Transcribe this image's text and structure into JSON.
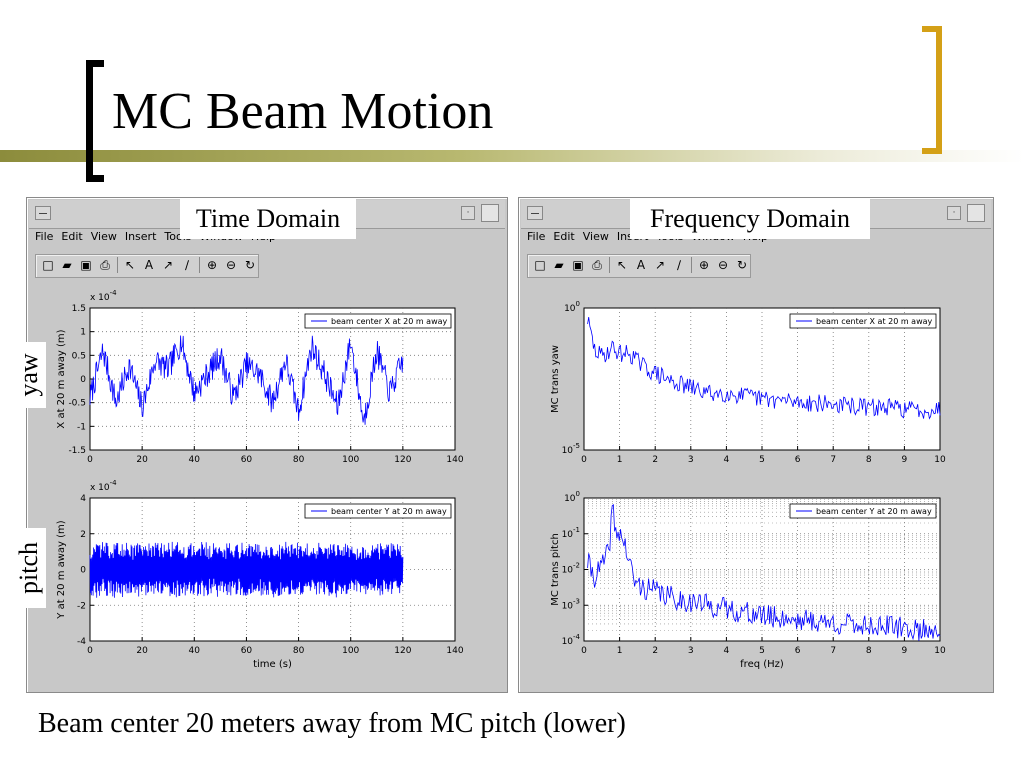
{
  "slide": {
    "title": "MC Beam Motion",
    "caption": "Beam center 20 meters away from MC  pitch (lower)",
    "side_labels": {
      "yaw": "yaw",
      "pitch": "pitch"
    },
    "accent_color": "#d4a017",
    "line_color": "#9b9b57"
  },
  "windows": [
    {
      "header": "Time Domain",
      "menu": [
        "File",
        "Edit",
        "View",
        "Insert",
        "Tools",
        "Window",
        "Help"
      ],
      "toolbar_icons": [
        "new-file-icon",
        "open-folder-icon",
        "save-icon",
        "print-icon",
        "select-arrow-icon",
        "text-icon",
        "arrow-icon",
        "line-icon",
        "zoom-in-icon",
        "zoom-out-icon",
        "rotate-icon"
      ]
    },
    {
      "header": "Frequency Domain",
      "menu": [
        "File",
        "Edit",
        "View",
        "Insert",
        "Tools",
        "Window",
        "Help"
      ],
      "toolbar_icons": [
        "new-file-icon",
        "open-folder-icon",
        "save-icon",
        "print-icon",
        "select-arrow-icon",
        "text-icon",
        "arrow-icon",
        "line-icon",
        "zoom-in-icon",
        "zoom-out-icon",
        "rotate-icon"
      ]
    }
  ],
  "chart_data": [
    {
      "type": "line",
      "ylabel": "X at 20 m away (m)",
      "xlabel": "",
      "exponent": "x 10^-4",
      "xlim": [
        0,
        140
      ],
      "ylim": [
        -1.5,
        1.5
      ],
      "xticks": [
        "0",
        "20",
        "40",
        "60",
        "80",
        "100",
        "120",
        "140"
      ],
      "yticks": [
        "1.5",
        "1",
        "0.5",
        "0",
        "-0.5",
        "-1",
        "-1.5"
      ],
      "legend": "beam center X at 20 m away",
      "line_color": "#0000ff",
      "grid": true,
      "series": [
        {
          "x": [
            0,
            5,
            10,
            15,
            20,
            25,
            30,
            35,
            40,
            45,
            50,
            55,
            60,
            65,
            70,
            75,
            80,
            85,
            90,
            95,
            100,
            105,
            110,
            115,
            120
          ],
          "y": [
            -0.4,
            0.6,
            -0.5,
            0.3,
            -0.6,
            0.4,
            0.2,
            0.8,
            -0.3,
            0.1,
            0.5,
            -0.4,
            0.3,
            0.1,
            -0.5,
            0.4,
            -0.7,
            0.7,
            0.1,
            -0.6,
            0.8,
            -0.9,
            0.6,
            -0.3,
            0.4
          ]
        }
      ]
    },
    {
      "type": "line",
      "ylabel": "Y at 20 m away (m)",
      "xlabel": "time (s)",
      "exponent": "x 10^-4",
      "xlim": [
        0,
        140
      ],
      "ylim": [
        -4,
        4
      ],
      "xticks": [
        "0",
        "20",
        "40",
        "60",
        "80",
        "100",
        "120",
        "140"
      ],
      "yticks": [
        "4",
        "2",
        "0",
        "-2",
        "-4"
      ],
      "legend": "beam center Y at 20 m away",
      "line_color": "#0000ff",
      "grid": true,
      "series": [
        {
          "x": [
            0,
            5,
            10,
            15,
            20,
            25,
            30,
            35,
            40,
            45,
            50,
            55,
            60,
            65,
            70,
            75,
            80,
            85,
            90,
            95,
            100,
            105,
            110,
            115,
            120
          ],
          "y": [
            1.5,
            -1.2,
            1,
            -1.3,
            1.2,
            -1.4,
            1,
            -1.1,
            1.2,
            -1,
            1.1,
            -1.2,
            1,
            -1.1,
            1.2,
            -1,
            1.1,
            -1.2,
            1,
            -1.1,
            1.2,
            -1.1,
            1,
            -1.2,
            1.1
          ]
        }
      ]
    },
    {
      "type": "line",
      "ylabel": "MC trans yaw",
      "xlabel": "",
      "xlim": [
        0,
        10
      ],
      "ylim": [
        -5,
        0
      ],
      "yscale": "log",
      "xticks": [
        "0",
        "1",
        "2",
        "3",
        "4",
        "5",
        "6",
        "7",
        "8",
        "9",
        "10"
      ],
      "yticks": [
        "10^0",
        "10^-5"
      ],
      "legend": "beam center X at 20 m away",
      "line_color": "#0000ff",
      "grid": true,
      "series": [
        {
          "x": [
            0.1,
            0.3,
            0.5,
            0.8,
            1,
            1.3,
            1.6,
            2,
            2.5,
            3,
            3.5,
            4,
            4.5,
            5,
            5.5,
            6,
            6.5,
            7,
            7.5,
            8,
            8.5,
            9,
            9.5,
            10
          ],
          "y": [
            -0.4,
            -1.5,
            -1.7,
            -1.4,
            -1.6,
            -1.6,
            -2,
            -2.3,
            -2.6,
            -2.8,
            -3,
            -3,
            -3.1,
            -3.2,
            -3.25,
            -3.3,
            -3.35,
            -3.4,
            -3.45,
            -3.5,
            -3.5,
            -3.55,
            -3.6,
            -3.55
          ]
        }
      ]
    },
    {
      "type": "line",
      "ylabel": "MC trans pitch",
      "xlabel": "freq (Hz)",
      "xlim": [
        0,
        10
      ],
      "ylim": [
        -4,
        0
      ],
      "yscale": "log",
      "xticks": [
        "0",
        "1",
        "2",
        "3",
        "4",
        "5",
        "6",
        "7",
        "8",
        "9",
        "10"
      ],
      "yticks": [
        "10^0",
        "10^-1",
        "10^-2",
        "10^-3",
        "10^-4"
      ],
      "legend": "beam center Y at 20 m away",
      "line_color": "#0000ff",
      "grid": true,
      "series": [
        {
          "x": [
            0.1,
            0.3,
            0.5,
            0.7,
            0.8,
            0.9,
            1,
            1.2,
            1.4,
            1.6,
            2,
            2.5,
            3,
            3.5,
            4,
            4.5,
            5,
            5.5,
            6,
            6.5,
            7,
            7.5,
            8,
            8.5,
            9,
            9.5,
            10
          ],
          "y": [
            -1.8,
            -2.2,
            -1.9,
            -1.5,
            -0.2,
            -1.1,
            -0.9,
            -1.5,
            -2.3,
            -2.5,
            -2.6,
            -2.8,
            -2.9,
            -3,
            -3.1,
            -3.2,
            -3.3,
            -3.35,
            -3.4,
            -3.45,
            -3.5,
            -3.55,
            -3.55,
            -3.6,
            -3.65,
            -3.7,
            -3.65
          ]
        }
      ]
    }
  ]
}
